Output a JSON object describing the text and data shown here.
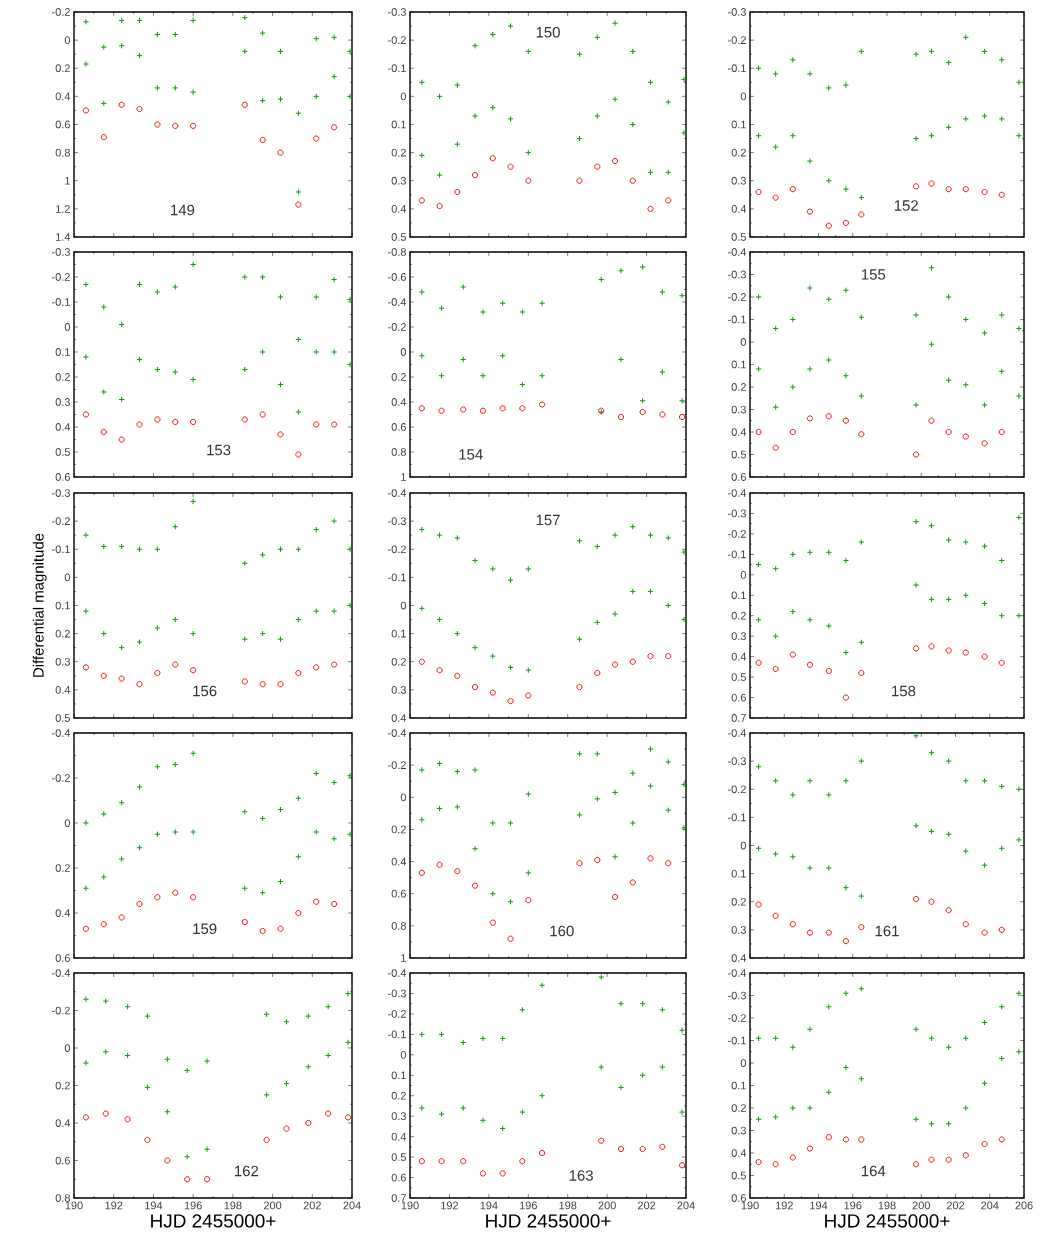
{
  "chart_data": [
    {
      "type": "scatter",
      "xlim": [
        190,
        204
      ],
      "xticks": [
        190,
        192,
        194,
        196,
        198,
        200,
        202,
        204
      ],
      "ylim": [
        1.4,
        -0.2
      ],
      "yticks": [
        -0.2,
        0,
        0.2,
        0.4,
        0.6,
        0.8,
        1,
        1.2,
        1.4
      ],
      "tick_labels": "y",
      "annotations": [
        "149"
      ],
      "series": [
        {
          "color": "#119911",
          "marker": "cross",
          "x": [
            190.6,
            190.6,
            191.5,
            191.5,
            192.4,
            192.4,
            193.3,
            193.3,
            194.2,
            194.2,
            195.1,
            195.1,
            196.0,
            196.0,
            198.6,
            198.6,
            199.5,
            199.5,
            200.4,
            200.4,
            201.3,
            201.3,
            202.2,
            202.2,
            203.1,
            203.1,
            203.9,
            203.9
          ],
          "values": [
            -0.13,
            0.17,
            0.05,
            0.45,
            -0.14,
            0.04,
            -0.14,
            0.11,
            -0.04,
            0.34,
            -0.04,
            0.34,
            -0.14,
            0.37,
            -0.16,
            0.08,
            -0.05,
            0.43,
            0.08,
            0.42,
            0.52,
            1.08,
            -0.01,
            0.4,
            -0.02,
            0.26,
            0.08,
            0.4
          ]
        },
        {
          "color": "#ee1111",
          "marker": "circle",
          "x": [
            190.6,
            191.5,
            192.4,
            193.3,
            194.2,
            195.1,
            196.0,
            198.6,
            199.5,
            200.4,
            201.3,
            202.2,
            203.1
          ],
          "values": [
            0.5,
            0.69,
            0.46,
            0.49,
            0.6,
            0.61,
            0.61,
            0.46,
            0.71,
            0.8,
            1.17,
            0.7,
            0.62
          ]
        }
      ]
    },
    {
      "type": "scatter",
      "xlim": [
        190,
        204
      ],
      "xticks": [
        190,
        192,
        194,
        196,
        198,
        200,
        202,
        204
      ],
      "ylim": [
        0.5,
        -0.3
      ],
      "yticks": [
        -0.3,
        -0.2,
        -0.1,
        0,
        0.1,
        0.2,
        0.3,
        0.4,
        0.5
      ],
      "tick_labels": "y",
      "annotations": [
        "150"
      ],
      "series": [
        {
          "color": "#119911",
          "marker": "cross",
          "x": [
            190.6,
            190.6,
            191.5,
            191.5,
            192.4,
            192.4,
            193.3,
            193.3,
            194.2,
            194.2,
            195.1,
            195.1,
            196.0,
            196.0,
            198.6,
            198.6,
            199.5,
            199.5,
            200.4,
            200.4,
            201.3,
            201.3,
            202.2,
            202.2,
            203.1,
            203.1,
            203.9,
            203.9
          ],
          "values": [
            -0.05,
            0.21,
            0.0,
            0.28,
            -0.04,
            0.17,
            -0.18,
            0.07,
            -0.22,
            0.04,
            -0.25,
            0.08,
            -0.16,
            0.2,
            -0.15,
            0.15,
            -0.21,
            0.07,
            -0.26,
            0.01,
            -0.16,
            0.1,
            -0.05,
            0.27,
            0.02,
            0.27,
            -0.06,
            0.13
          ]
        },
        {
          "color": "#ee1111",
          "marker": "circle",
          "x": [
            190.6,
            191.5,
            192.4,
            193.3,
            194.2,
            195.1,
            196.0,
            198.6,
            199.5,
            200.4,
            201.3,
            202.2,
            203.1
          ],
          "values": [
            0.37,
            0.39,
            0.34,
            0.28,
            0.22,
            0.25,
            0.3,
            0.3,
            0.25,
            0.23,
            0.3,
            0.4,
            0.37
          ]
        }
      ]
    },
    {
      "type": "scatter",
      "xlim": [
        190,
        206
      ],
      "xticks": [
        190,
        192,
        194,
        196,
        198,
        200,
        202,
        204,
        206
      ],
      "ylim": [
        0.5,
        -0.3
      ],
      "yticks": [
        -0.3,
        -0.2,
        -0.1,
        0,
        0.1,
        0.2,
        0.3,
        0.4,
        0.5
      ],
      "tick_labels": "y",
      "annotations": [
        "152"
      ],
      "series": [
        {
          "color": "#119911",
          "marker": "cross",
          "x": [
            190.5,
            190.5,
            191.5,
            191.5,
            192.5,
            192.5,
            193.5,
            193.5,
            194.6,
            194.6,
            195.6,
            195.6,
            196.5,
            196.5,
            199.7,
            199.7,
            200.6,
            200.6,
            201.6,
            201.6,
            202.6,
            202.6,
            203.7,
            203.7,
            204.7,
            204.7,
            205.7,
            205.7
          ],
          "values": [
            -0.1,
            0.14,
            -0.08,
            0.18,
            -0.13,
            0.14,
            -0.08,
            0.23,
            -0.03,
            0.3,
            -0.04,
            0.33,
            -0.16,
            0.36,
            -0.15,
            0.15,
            -0.16,
            0.14,
            -0.12,
            0.11,
            -0.21,
            0.08,
            -0.16,
            0.07,
            -0.13,
            0.08,
            -0.05,
            0.14
          ]
        },
        {
          "color": "#ee1111",
          "marker": "circle",
          "x": [
            190.5,
            191.5,
            192.5,
            193.5,
            194.6,
            195.6,
            196.5,
            199.7,
            200.6,
            201.6,
            202.6,
            203.7,
            204.7
          ],
          "values": [
            0.34,
            0.36,
            0.33,
            0.41,
            0.46,
            0.45,
            0.42,
            0.32,
            0.31,
            0.33,
            0.33,
            0.34,
            0.35
          ]
        }
      ]
    },
    {
      "type": "scatter",
      "xlim": [
        190,
        204
      ],
      "xticks": [
        190,
        192,
        194,
        196,
        198,
        200,
        202,
        204
      ],
      "ylim": [
        0.6,
        -0.3
      ],
      "yticks": [
        -0.3,
        -0.2,
        -0.1,
        0,
        0.1,
        0.2,
        0.3,
        0.4,
        0.5,
        0.6
      ],
      "tick_labels": "y",
      "annotations": [
        "153"
      ],
      "series": [
        {
          "color": "#119911",
          "marker": "cross",
          "x": [
            190.6,
            190.6,
            191.5,
            191.5,
            192.4,
            192.4,
            193.3,
            193.3,
            194.2,
            194.2,
            195.1,
            195.1,
            196.0,
            196.0,
            198.6,
            198.6,
            199.5,
            199.5,
            200.4,
            200.4,
            201.3,
            201.3,
            202.2,
            202.2,
            203.1,
            203.1,
            203.9,
            203.9
          ],
          "values": [
            -0.17,
            0.12,
            -0.08,
            0.26,
            -0.01,
            0.29,
            -0.17,
            0.13,
            -0.14,
            0.17,
            -0.16,
            0.18,
            -0.25,
            0.21,
            -0.2,
            0.17,
            -0.2,
            0.1,
            -0.12,
            0.23,
            0.05,
            0.34,
            -0.12,
            0.1,
            -0.19,
            0.1,
            -0.11,
            0.15
          ]
        },
        {
          "color": "#ee1111",
          "marker": "circle",
          "x": [
            190.6,
            191.5,
            192.4,
            193.3,
            194.2,
            195.1,
            196.0,
            198.6,
            199.5,
            200.4,
            201.3,
            202.2,
            203.1
          ],
          "values": [
            0.35,
            0.42,
            0.45,
            0.39,
            0.37,
            0.38,
            0.38,
            0.37,
            0.35,
            0.43,
            0.51,
            0.39,
            0.39
          ]
        }
      ]
    },
    {
      "type": "scatter",
      "xlim": [
        190,
        204
      ],
      "xticks": [
        190,
        192,
        194,
        196,
        198,
        200,
        202,
        204
      ],
      "ylim": [
        1,
        -0.8
      ],
      "yticks": [
        -0.8,
        -0.6,
        -0.4,
        -0.2,
        0,
        0.2,
        0.4,
        0.6,
        0.8,
        1
      ],
      "tick_labels": "y",
      "annotations": [
        "154"
      ],
      "series": [
        {
          "color": "#119911",
          "marker": "cross",
          "x": [
            190.6,
            190.6,
            191.6,
            191.6,
            192.7,
            192.7,
            193.7,
            193.7,
            194.7,
            194.7,
            195.7,
            195.7,
            196.7,
            196.7,
            199.7,
            199.7,
            200.7,
            200.7,
            201.8,
            201.8,
            202.8,
            202.8,
            203.8,
            203.8
          ],
          "values": [
            -0.48,
            0.03,
            -0.35,
            0.19,
            -0.52,
            0.06,
            -0.32,
            0.19,
            -0.39,
            0.03,
            -0.32,
            0.26,
            -0.39,
            0.19,
            -0.58,
            0.48,
            -0.65,
            0.06,
            -0.68,
            0.39,
            -0.48,
            0.16,
            -0.45,
            0.39
          ]
        },
        {
          "color": "#ee1111",
          "marker": "circle",
          "x": [
            190.6,
            191.6,
            192.7,
            193.7,
            194.7,
            195.7,
            196.7,
            199.7,
            200.7,
            201.8,
            202.8,
            203.8
          ],
          "values": [
            0.45,
            0.47,
            0.46,
            0.47,
            0.45,
            0.45,
            0.42,
            0.47,
            0.52,
            0.48,
            0.5,
            0.52
          ]
        }
      ]
    },
    {
      "type": "scatter",
      "xlim": [
        190,
        206
      ],
      "xticks": [
        190,
        192,
        194,
        196,
        198,
        200,
        202,
        204,
        206
      ],
      "ylim": [
        0.6,
        -0.4
      ],
      "yticks": [
        -0.4,
        -0.3,
        -0.2,
        -0.1,
        0,
        0.1,
        0.2,
        0.3,
        0.4,
        0.5,
        0.6
      ],
      "tick_labels": "y",
      "annotations": [
        "155"
      ],
      "series": [
        {
          "color": "#119911",
          "marker": "cross",
          "x": [
            190.5,
            190.5,
            191.5,
            191.5,
            192.5,
            192.5,
            193.5,
            193.5,
            194.6,
            194.6,
            195.6,
            195.6,
            196.5,
            196.5,
            199.7,
            199.7,
            200.6,
            200.6,
            201.6,
            201.6,
            202.6,
            202.6,
            203.7,
            203.7,
            204.7,
            204.7,
            205.7,
            205.7
          ],
          "values": [
            -0.2,
            0.12,
            -0.06,
            0.29,
            -0.1,
            0.2,
            -0.24,
            0.12,
            -0.19,
            0.08,
            -0.23,
            0.15,
            -0.11,
            0.24,
            -0.12,
            0.28,
            -0.33,
            0.01,
            -0.2,
            0.17,
            -0.1,
            0.19,
            -0.04,
            0.28,
            -0.12,
            0.13,
            -0.06,
            0.24
          ]
        },
        {
          "color": "#ee1111",
          "marker": "circle",
          "x": [
            190.5,
            191.5,
            192.5,
            193.5,
            194.6,
            195.6,
            196.5,
            199.7,
            200.6,
            201.6,
            202.6,
            203.7,
            204.7
          ],
          "values": [
            0.4,
            0.47,
            0.4,
            0.34,
            0.33,
            0.35,
            0.41,
            0.5,
            0.35,
            0.4,
            0.42,
            0.45,
            0.4
          ]
        }
      ]
    },
    {
      "type": "scatter",
      "xlim": [
        190,
        204
      ],
      "xticks": [
        190,
        192,
        194,
        196,
        198,
        200,
        202,
        204
      ],
      "ylim": [
        0.5,
        -0.3
      ],
      "yticks": [
        -0.3,
        -0.2,
        -0.1,
        0,
        0.1,
        0.2,
        0.3,
        0.4,
        0.5
      ],
      "tick_labels": "y",
      "ylabel": "Differential  magnitude",
      "annotations": [
        "156"
      ],
      "series": [
        {
          "color": "#119911",
          "marker": "cross",
          "x": [
            190.6,
            190.6,
            191.5,
            191.5,
            192.4,
            192.4,
            193.3,
            193.3,
            194.2,
            194.2,
            195.1,
            195.1,
            196.0,
            196.0,
            198.6,
            198.6,
            199.5,
            199.5,
            200.4,
            200.4,
            201.3,
            201.3,
            202.2,
            202.2,
            203.1,
            203.1,
            203.9,
            203.9
          ],
          "values": [
            -0.15,
            0.12,
            -0.11,
            0.2,
            -0.11,
            0.25,
            -0.1,
            0.23,
            -0.1,
            0.18,
            -0.18,
            0.15,
            -0.27,
            0.2,
            -0.05,
            0.22,
            -0.08,
            0.2,
            -0.1,
            0.22,
            -0.1,
            0.15,
            -0.17,
            0.12,
            -0.2,
            0.12,
            -0.1,
            0.1
          ]
        },
        {
          "color": "#ee1111",
          "marker": "circle",
          "x": [
            190.6,
            191.5,
            192.4,
            193.3,
            194.2,
            195.1,
            196.0,
            198.6,
            199.5,
            200.4,
            201.3,
            202.2,
            203.1
          ],
          "values": [
            0.32,
            0.35,
            0.36,
            0.38,
            0.34,
            0.31,
            0.33,
            0.37,
            0.38,
            0.38,
            0.34,
            0.32,
            0.31
          ]
        }
      ]
    },
    {
      "type": "scatter",
      "xlim": [
        190,
        204
      ],
      "xticks": [
        190,
        192,
        194,
        196,
        198,
        200,
        202,
        204
      ],
      "ylim": [
        0.4,
        -0.4
      ],
      "yticks": [
        -0.4,
        -0.3,
        -0.2,
        -0.1,
        0,
        0.1,
        0.2,
        0.3,
        0.4
      ],
      "tick_labels": "y",
      "annotations": [
        "157"
      ],
      "series": [
        {
          "color": "#119911",
          "marker": "cross",
          "x": [
            190.6,
            190.6,
            191.5,
            191.5,
            192.4,
            192.4,
            193.3,
            193.3,
            194.2,
            194.2,
            195.1,
            195.1,
            196.0,
            196.0,
            198.6,
            198.6,
            199.5,
            199.5,
            200.4,
            200.4,
            201.3,
            201.3,
            202.2,
            202.2,
            203.1,
            203.1,
            203.9,
            203.9
          ],
          "values": [
            -0.27,
            0.01,
            -0.25,
            0.05,
            -0.24,
            0.1,
            -0.16,
            0.15,
            -0.13,
            0.18,
            -0.09,
            0.22,
            -0.13,
            0.23,
            -0.23,
            0.12,
            -0.21,
            0.06,
            -0.25,
            0.03,
            -0.28,
            -0.05,
            -0.25,
            -0.05,
            -0.24,
            0.0,
            -0.19,
            0.05
          ]
        },
        {
          "color": "#ee1111",
          "marker": "circle",
          "x": [
            190.6,
            191.5,
            192.4,
            193.3,
            194.2,
            195.1,
            196.0,
            198.6,
            199.5,
            200.4,
            201.3,
            202.2,
            203.1
          ],
          "values": [
            0.2,
            0.23,
            0.25,
            0.29,
            0.31,
            0.34,
            0.32,
            0.29,
            0.24,
            0.21,
            0.2,
            0.18,
            0.18
          ]
        }
      ]
    },
    {
      "type": "scatter",
      "xlim": [
        190,
        206
      ],
      "xticks": [
        190,
        192,
        194,
        196,
        198,
        200,
        202,
        204,
        206
      ],
      "ylim": [
        0.7,
        -0.4
      ],
      "yticks": [
        -0.4,
        -0.3,
        -0.2,
        -0.1,
        0,
        0.1,
        0.2,
        0.3,
        0.4,
        0.5,
        0.6,
        0.7
      ],
      "tick_labels": "y",
      "annotations": [
        "158"
      ],
      "series": [
        {
          "color": "#119911",
          "marker": "cross",
          "x": [
            190.5,
            190.5,
            191.5,
            191.5,
            192.5,
            192.5,
            193.5,
            193.5,
            194.6,
            194.6,
            195.6,
            195.6,
            196.5,
            196.5,
            199.7,
            199.7,
            200.6,
            200.6,
            201.6,
            201.6,
            202.6,
            202.6,
            203.7,
            203.7,
            204.7,
            204.7,
            205.7,
            205.7
          ],
          "values": [
            -0.05,
            0.22,
            -0.03,
            0.3,
            -0.1,
            0.18,
            -0.11,
            0.22,
            -0.11,
            0.25,
            -0.07,
            0.38,
            -0.16,
            0.33,
            -0.26,
            0.05,
            -0.24,
            0.12,
            -0.17,
            0.12,
            -0.16,
            0.1,
            -0.14,
            0.14,
            -0.07,
            0.2,
            -0.28,
            0.2
          ]
        },
        {
          "color": "#ee1111",
          "marker": "circle",
          "x": [
            190.5,
            191.5,
            192.5,
            193.5,
            194.6,
            195.6,
            196.5,
            199.7,
            200.6,
            201.6,
            202.6,
            203.7,
            204.7
          ],
          "values": [
            0.43,
            0.46,
            0.39,
            0.44,
            0.47,
            0.6,
            0.48,
            0.36,
            0.35,
            0.37,
            0.38,
            0.4,
            0.43
          ]
        }
      ]
    },
    {
      "type": "scatter",
      "xlim": [
        190,
        204
      ],
      "xticks": [
        190,
        192,
        194,
        196,
        198,
        200,
        202,
        204
      ],
      "ylim": [
        0.6,
        -0.4
      ],
      "yticks": [
        -0.4,
        -0.2,
        0,
        0.2,
        0.4,
        0.6
      ],
      "tick_labels": "y",
      "annotations": [
        "159"
      ],
      "series": [
        {
          "color": "#119911",
          "marker": "cross",
          "x": [
            190.6,
            190.6,
            191.5,
            191.5,
            192.4,
            192.4,
            193.3,
            193.3,
            194.2,
            194.2,
            195.1,
            195.1,
            196.0,
            196.0,
            198.6,
            198.6,
            199.5,
            199.5,
            200.4,
            200.4,
            201.3,
            201.3,
            202.2,
            202.2,
            203.1,
            203.1,
            203.9,
            203.9
          ],
          "values": [
            0,
            0.29,
            -0.04,
            0.24,
            -0.09,
            0.16,
            -0.16,
            0.11,
            -0.25,
            0.05,
            -0.26,
            0.04,
            -0.31,
            0.04,
            -0.05,
            0.29,
            -0.02,
            0.31,
            -0.06,
            0.26,
            -0.11,
            0.15,
            -0.22,
            0.04,
            -0.18,
            0.07,
            -0.21,
            0.05
          ]
        },
        {
          "color": "#ee1111",
          "marker": "circle",
          "x": [
            190.6,
            191.5,
            192.4,
            193.3,
            194.2,
            195.1,
            196.0,
            198.6,
            199.5,
            200.4,
            201.3,
            202.2,
            203.1
          ],
          "values": [
            0.47,
            0.45,
            0.42,
            0.36,
            0.33,
            0.31,
            0.33,
            0.44,
            0.48,
            0.47,
            0.4,
            0.35,
            0.36
          ]
        }
      ]
    },
    {
      "type": "scatter",
      "xlim": [
        190,
        204
      ],
      "xticks": [
        190,
        192,
        194,
        196,
        198,
        200,
        202,
        204
      ],
      "ylim": [
        1,
        -0.4
      ],
      "yticks": [
        -0.4,
        -0.2,
        0,
        0.2,
        0.4,
        0.6,
        0.8,
        1
      ],
      "tick_labels": "y",
      "annotations": [
        "160"
      ],
      "series": [
        {
          "color": "#119911",
          "marker": "cross",
          "x": [
            190.6,
            190.6,
            191.5,
            191.5,
            192.4,
            192.4,
            193.3,
            193.3,
            194.2,
            194.2,
            195.1,
            195.1,
            196.0,
            196.0,
            198.6,
            198.6,
            199.5,
            199.5,
            200.4,
            200.4,
            201.3,
            201.3,
            202.2,
            202.2,
            203.1,
            203.1,
            203.9,
            203.9
          ],
          "values": [
            -0.17,
            0.14,
            -0.21,
            0.07,
            -0.16,
            0.06,
            -0.17,
            0.32,
            0.16,
            0.6,
            0.16,
            0.65,
            -0.02,
            0.47,
            -0.27,
            0.11,
            -0.27,
            0.01,
            -0.03,
            0.37,
            -0.15,
            0.16,
            -0.3,
            -0.07,
            -0.22,
            0.08,
            -0.08,
            0.19
          ]
        },
        {
          "color": "#ee1111",
          "marker": "circle",
          "x": [
            190.6,
            191.5,
            192.4,
            193.3,
            194.2,
            195.1,
            196.0,
            198.6,
            199.5,
            200.4,
            201.3,
            202.2,
            203.1
          ],
          "values": [
            0.47,
            0.42,
            0.46,
            0.55,
            0.78,
            0.88,
            0.64,
            0.41,
            0.39,
            0.62,
            0.53,
            0.38,
            0.41
          ]
        }
      ]
    },
    {
      "type": "scatter",
      "xlim": [
        190,
        206
      ],
      "xticks": [
        190,
        192,
        194,
        196,
        198,
        200,
        202,
        204,
        206
      ],
      "ylim": [
        0.4,
        -0.4
      ],
      "yticks": [
        -0.4,
        -0.3,
        -0.2,
        -0.1,
        0,
        0.1,
        0.2,
        0.3,
        0.4
      ],
      "tick_labels": "y",
      "annotations": [
        "161"
      ],
      "series": [
        {
          "color": "#119911",
          "marker": "cross",
          "x": [
            190.5,
            190.5,
            191.5,
            191.5,
            192.5,
            192.5,
            193.5,
            193.5,
            194.6,
            194.6,
            195.6,
            195.6,
            196.5,
            196.5,
            199.7,
            199.7,
            200.6,
            200.6,
            201.6,
            201.6,
            202.6,
            202.6,
            203.7,
            203.7,
            204.7,
            204.7,
            205.7,
            205.7
          ],
          "values": [
            -0.28,
            0.01,
            -0.23,
            0.03,
            -0.18,
            0.04,
            -0.23,
            0.08,
            -0.18,
            0.08,
            -0.23,
            0.15,
            -0.3,
            0.18,
            -0.39,
            -0.07,
            -0.33,
            -0.05,
            -0.3,
            -0.04,
            -0.23,
            0.02,
            -0.23,
            0.07,
            -0.21,
            0.01,
            -0.2,
            -0.02
          ]
        },
        {
          "color": "#ee1111",
          "marker": "circle",
          "x": [
            190.5,
            191.5,
            192.5,
            193.5,
            194.6,
            195.6,
            196.5,
            199.7,
            200.6,
            201.6,
            202.6,
            203.7,
            204.7
          ],
          "values": [
            0.21,
            0.25,
            0.28,
            0.31,
            0.31,
            0.34,
            0.29,
            0.19,
            0.2,
            0.23,
            0.28,
            0.31,
            0.3
          ]
        }
      ]
    },
    {
      "type": "scatter",
      "xlim": [
        190,
        204
      ],
      "xticks": [
        190,
        192,
        194,
        196,
        198,
        200,
        202,
        204
      ],
      "ylim": [
        0.8,
        -0.4
      ],
      "yticks": [
        -0.4,
        -0.2,
        0,
        0.2,
        0.4,
        0.6,
        0.8
      ],
      "xlabel": "HJD 2455000+",
      "annotations": [
        "162"
      ],
      "series": [
        {
          "color": "#119911",
          "marker": "cross",
          "x": [
            190.6,
            190.6,
            191.6,
            191.6,
            192.7,
            192.7,
            193.7,
            193.7,
            194.7,
            194.7,
            195.7,
            195.7,
            196.7,
            196.7,
            199.7,
            199.7,
            200.7,
            200.7,
            201.8,
            201.8,
            202.8,
            202.8,
            203.8,
            203.8
          ],
          "values": [
            -0.26,
            0.08,
            -0.25,
            0.02,
            -0.22,
            0.04,
            -0.17,
            0.21,
            0.06,
            0.34,
            0.12,
            0.58,
            0.07,
            0.54,
            -0.18,
            0.25,
            -0.14,
            0.19,
            -0.17,
            0.1,
            -0.22,
            0.04,
            -0.29,
            -0.03
          ]
        },
        {
          "color": "#ee1111",
          "marker": "circle",
          "x": [
            190.6,
            191.6,
            192.7,
            193.7,
            194.7,
            195.7,
            196.7,
            199.7,
            200.7,
            201.8,
            202.8,
            203.8
          ],
          "values": [
            0.37,
            0.35,
            0.38,
            0.49,
            0.6,
            0.7,
            0.7,
            0.49,
            0.43,
            0.4,
            0.35,
            0.37
          ]
        }
      ]
    },
    {
      "type": "scatter",
      "xlim": [
        190,
        204
      ],
      "xticks": [
        190,
        192,
        194,
        196,
        198,
        200,
        202,
        204
      ],
      "ylim": [
        0.7,
        -0.4
      ],
      "yticks": [
        -0.4,
        -0.3,
        -0.2,
        -0.1,
        0,
        0.1,
        0.2,
        0.3,
        0.4,
        0.5,
        0.6,
        0.7
      ],
      "xlabel": "HJD 2455000+",
      "annotations": [
        "163"
      ],
      "series": [
        {
          "color": "#119911",
          "marker": "cross",
          "x": [
            190.6,
            190.6,
            191.6,
            191.6,
            192.7,
            192.7,
            193.7,
            193.7,
            194.7,
            194.7,
            195.7,
            195.7,
            196.7,
            196.7,
            199.7,
            199.7,
            200.7,
            200.7,
            201.8,
            201.8,
            202.8,
            202.8,
            203.8,
            203.8
          ],
          "values": [
            -0.1,
            0.26,
            -0.1,
            0.29,
            -0.06,
            0.26,
            -0.08,
            0.32,
            -0.08,
            0.36,
            -0.22,
            0.28,
            -0.34,
            0.2,
            -0.38,
            0.06,
            -0.25,
            0.16,
            -0.25,
            0.1,
            -0.22,
            0.06,
            -0.12,
            0.28
          ]
        },
        {
          "color": "#ee1111",
          "marker": "circle",
          "x": [
            190.6,
            191.6,
            192.7,
            193.7,
            194.7,
            195.7,
            196.7,
            199.7,
            200.7,
            201.8,
            202.8,
            203.8
          ],
          "values": [
            0.52,
            0.52,
            0.52,
            0.58,
            0.58,
            0.52,
            0.48,
            0.42,
            0.46,
            0.46,
            0.45,
            0.54
          ]
        }
      ]
    },
    {
      "type": "scatter",
      "xlim": [
        190,
        206
      ],
      "xticks": [
        190,
        192,
        194,
        196,
        198,
        200,
        202,
        204,
        206
      ],
      "ylim": [
        0.6,
        -0.4
      ],
      "yticks": [
        -0.4,
        -0.3,
        -0.2,
        -0.1,
        0,
        0.1,
        0.2,
        0.3,
        0.4,
        0.5,
        0.6
      ],
      "xlabel": "HJD 2455000+",
      "annotations": [
        "164"
      ],
      "series": [
        {
          "color": "#119911",
          "marker": "cross",
          "x": [
            190.5,
            190.5,
            191.5,
            191.5,
            192.5,
            192.5,
            193.5,
            193.5,
            194.6,
            194.6,
            195.6,
            195.6,
            196.5,
            196.5,
            199.7,
            199.7,
            200.6,
            200.6,
            201.6,
            201.6,
            202.6,
            202.6,
            203.7,
            203.7,
            204.7,
            204.7,
            205.7,
            205.7
          ],
          "values": [
            -0.11,
            0.25,
            -0.11,
            0.24,
            -0.07,
            0.2,
            -0.15,
            0.2,
            -0.25,
            0.13,
            -0.31,
            0.02,
            -0.33,
            0.07,
            -0.15,
            0.25,
            -0.11,
            0.27,
            -0.07,
            0.27,
            -0.11,
            0.2,
            -0.18,
            0.09,
            -0.25,
            -0.02,
            -0.31,
            -0.05
          ]
        },
        {
          "color": "#ee1111",
          "marker": "circle",
          "x": [
            190.5,
            191.5,
            192.5,
            193.5,
            194.6,
            195.6,
            196.5,
            199.7,
            200.6,
            201.6,
            202.6,
            203.7,
            204.7
          ],
          "values": [
            0.44,
            0.45,
            0.42,
            0.38,
            0.33,
            0.34,
            0.34,
            0.45,
            0.43,
            0.43,
            0.41,
            0.36,
            0.34
          ]
        }
      ]
    }
  ]
}
